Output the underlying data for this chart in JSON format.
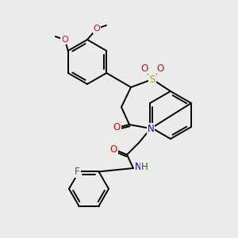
{
  "bg_color": "#ebebeb",
  "atom_colors": {
    "S": "#aaaa00",
    "N": "#0000ee",
    "O": "#ee0000",
    "F": "#cc00cc",
    "H": "#007700",
    "C": "#000000"
  },
  "bond_width": 1.4,
  "font_size": 8.5,
  "scale": 1.0
}
